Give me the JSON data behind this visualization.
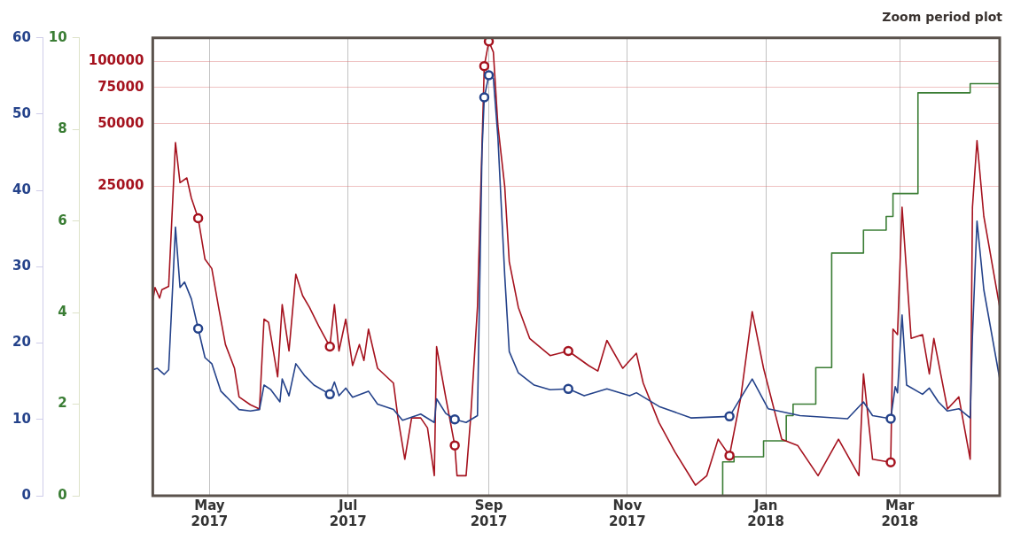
{
  "chart_data": {
    "type": "line",
    "title": "Zoom period plot",
    "xlim": [
      "2017-04-06",
      "2018-04-14"
    ],
    "xticks": [
      {
        "value": "2017-05-01",
        "label": "May 2017"
      },
      {
        "value": "2017-07-01",
        "label": "Jul 2017"
      },
      {
        "value": "2017-09-01",
        "label": "Sep 2017"
      },
      {
        "value": "2017-11-01",
        "label": "Nov 2017"
      },
      {
        "value": "2018-01-01",
        "label": "Jan 2018"
      },
      {
        "value": "2018-03-01",
        "label": "Mar 2018"
      }
    ],
    "ylim": [
      0,
      60
    ],
    "yticks": [
      0,
      10,
      20,
      30,
      40,
      50,
      60
    ],
    "y3lim": [
      0,
      10
    ],
    "y3ticks": [
      0,
      2,
      4,
      6,
      8,
      10
    ],
    "y2lim": [
      800,
      130000
    ],
    "y2ticks": [
      25000,
      50000,
      75000,
      100000
    ],
    "log": "y2",
    "grid": true,
    "legend": false,
    "marker": "none",
    "series": [
      {
        "axis": "y",
        "color": "#24428a",
        "x": [
          "2017-04-06",
          "2017-04-08",
          "2017-04-11",
          "2017-04-13",
          "2017-04-15",
          "2017-04-16",
          "2017-04-18",
          "2017-04-20",
          "2017-04-23",
          "2017-04-26",
          "2017-04-29",
          "2017-05-02",
          "2017-05-06",
          "2017-05-10",
          "2017-05-14",
          "2017-05-19",
          "2017-05-23",
          "2017-05-25",
          "2017-05-28",
          "2017-06-01",
          "2017-06-02",
          "2017-06-05",
          "2017-06-08",
          "2017-06-12",
          "2017-06-16",
          "2017-06-23",
          "2017-06-25",
          "2017-06-27",
          "2017-06-30",
          "2017-07-03",
          "2017-07-10",
          "2017-07-14",
          "2017-07-21",
          "2017-07-25",
          "2017-08-02",
          "2017-08-08",
          "2017-08-09",
          "2017-08-13",
          "2017-08-17",
          "2017-08-22",
          "2017-08-27",
          "2017-08-29",
          "2017-08-30",
          "2017-09-01",
          "2017-09-03",
          "2017-09-05",
          "2017-09-08",
          "2017-09-10",
          "2017-09-14",
          "2017-09-21",
          "2017-09-28",
          "2017-10-06",
          "2017-10-13",
          "2017-10-23",
          "2017-11-02",
          "2017-11-05",
          "2017-11-15",
          "2017-11-29",
          "2017-12-16",
          "2017-12-26",
          "2018-01-02",
          "2018-01-16",
          "2018-02-06",
          "2018-02-13",
          "2018-02-17",
          "2018-02-25",
          "2018-02-27",
          "2018-02-28",
          "2018-03-02",
          "2018-03-04",
          "2018-03-11",
          "2018-03-14",
          "2018-03-18",
          "2018-03-22",
          "2018-03-27",
          "2018-04-01",
          "2018-04-02",
          "2018-04-04",
          "2018-04-07",
          "2018-04-14"
        ],
        "values": [
          16.5,
          16.7,
          15.9,
          16.5,
          28.9,
          35.2,
          27.3,
          28.0,
          25.8,
          21.9,
          18.1,
          17.3,
          13.7,
          12.5,
          11.3,
          11.1,
          11.3,
          14.5,
          13.9,
          12.3,
          15.3,
          13.1,
          17.3,
          15.7,
          14.5,
          13.3,
          14.9,
          13.1,
          14.1,
          12.9,
          13.7,
          12.0,
          11.3,
          9.9,
          10.7,
          9.6,
          12.7,
          10.8,
          10.0,
          9.6,
          10.5,
          45.1,
          52.2,
          55.1,
          54.7,
          47.0,
          28.9,
          18.9,
          16.1,
          14.5,
          13.9,
          14.0,
          13.1,
          14.0,
          13.1,
          13.5,
          11.7,
          10.2,
          10.4,
          15.3,
          11.4,
          10.5,
          10.1,
          12.3,
          10.5,
          10.1,
          14.3,
          13.5,
          23.7,
          14.5,
          13.3,
          14.1,
          12.3,
          11.1,
          11.4,
          10.2,
          21.0,
          36.0,
          27.0,
          15.3
        ]
      },
      {
        "axis": "y2",
        "color": "#a5121e",
        "x": [
          "2017-04-06",
          "2017-04-07",
          "2017-04-09",
          "2017-04-10",
          "2017-04-13",
          "2017-04-16",
          "2017-04-18",
          "2017-04-21",
          "2017-04-23",
          "2017-04-26",
          "2017-04-29",
          "2017-05-02",
          "2017-05-05",
          "2017-05-08",
          "2017-05-12",
          "2017-05-14",
          "2017-05-19",
          "2017-05-23",
          "2017-05-25",
          "2017-05-27",
          "2017-05-31",
          "2017-06-02",
          "2017-06-05",
          "2017-06-08",
          "2017-06-11",
          "2017-06-14",
          "2017-06-18",
          "2017-06-23",
          "2017-06-25",
          "2017-06-27",
          "2017-06-30",
          "2017-07-03",
          "2017-07-06",
          "2017-07-08",
          "2017-07-10",
          "2017-07-14",
          "2017-07-21",
          "2017-07-23",
          "2017-07-26",
          "2017-07-29",
          "2017-08-02",
          "2017-08-05",
          "2017-08-08",
          "2017-08-09",
          "2017-08-13",
          "2017-08-17",
          "2017-08-18",
          "2017-08-22",
          "2017-08-24",
          "2017-08-27",
          "2017-08-30",
          "2017-09-01",
          "2017-09-03",
          "2017-09-05",
          "2017-09-08",
          "2017-09-10",
          "2017-09-14",
          "2017-09-19",
          "2017-09-28",
          "2017-10-06",
          "2017-10-15",
          "2017-10-19",
          "2017-10-23",
          "2017-10-30",
          "2017-11-05",
          "2017-11-08",
          "2017-11-15",
          "2017-11-22",
          "2017-12-01",
          "2017-12-06",
          "2017-12-11",
          "2017-12-16",
          "2017-12-21",
          "2017-12-26",
          "2017-12-31",
          "2018-01-08",
          "2018-01-15",
          "2018-01-24",
          "2018-02-02",
          "2018-02-11",
          "2018-02-13",
          "2018-02-17",
          "2018-02-25",
          "2018-02-26",
          "2018-02-28",
          "2018-03-02",
          "2018-03-06",
          "2018-03-11",
          "2018-03-14",
          "2018-03-16",
          "2018-03-22",
          "2018-03-27",
          "2018-04-01",
          "2018-04-02",
          "2018-04-04",
          "2018-04-07",
          "2018-04-14"
        ],
        "values": [
          7000,
          8100,
          7200,
          7900,
          8200,
          40600,
          26000,
          27400,
          21900,
          17500,
          11100,
          10000,
          6500,
          4300,
          3300,
          2400,
          2200,
          2100,
          5700,
          5500,
          3000,
          6700,
          4000,
          9400,
          7400,
          6500,
          5300,
          4200,
          6700,
          4000,
          5700,
          3400,
          4300,
          3600,
          5100,
          3300,
          2800,
          1900,
          1200,
          1900,
          1900,
          1700,
          1000,
          4200,
          2400,
          1400,
          1000,
          1000,
          1900,
          6500,
          95000,
          125000,
          111000,
          49000,
          25000,
          10800,
          6500,
          4600,
          3800,
          4000,
          3400,
          3200,
          4500,
          3300,
          3900,
          2800,
          1800,
          1300,
          900,
          1000,
          1500,
          1250,
          2400,
          6200,
          3300,
          1500,
          1400,
          1000,
          1500,
          1000,
          3100,
          1200,
          1160,
          5100,
          4800,
          19800,
          4600,
          4800,
          3100,
          4600,
          2100,
          2400,
          1200,
          19800,
          41500,
          17900,
          6500
        ]
      },
      {
        "type": "step",
        "axis": "y3",
        "color": "#3a7d34",
        "x": [
          "2017-12-13",
          "2017-12-18",
          "2017-12-31",
          "2018-01-10",
          "2018-01-13",
          "2018-01-23",
          "2018-01-30",
          "2018-02-13",
          "2018-02-23",
          "2018-02-26",
          "2018-03-09",
          "2018-04-01",
          "2018-04-09",
          "2018-04-14"
        ],
        "values": [
          0,
          0.74,
          0.85,
          1.2,
          1.75,
          2.0,
          2.8,
          5.3,
          5.8,
          6.1,
          6.6,
          8.8,
          9.0,
          9.0
        ]
      },
      {
        "type": "scatter",
        "axis": "y",
        "marker": "circle",
        "color": "#24428a",
        "x": [
          "2017-04-26",
          "2017-06-23",
          "2017-08-17",
          "2017-08-30",
          "2017-09-01",
          "2017-10-06",
          "2017-12-16",
          "2018-02-25"
        ],
        "values": [
          21.9,
          13.3,
          10.0,
          52.2,
          55.1,
          14.0,
          10.4,
          10.1
        ]
      },
      {
        "type": "scatter",
        "axis": "y2",
        "marker": "circle",
        "color": "#a5121e",
        "x": [
          "2017-04-26",
          "2017-06-23",
          "2017-08-17",
          "2017-08-30",
          "2017-09-01",
          "2017-10-06",
          "2017-12-16",
          "2018-02-25"
        ],
        "values": [
          17500,
          4200,
          1400,
          95000,
          125000,
          4000,
          1250,
          1160
        ]
      }
    ]
  }
}
